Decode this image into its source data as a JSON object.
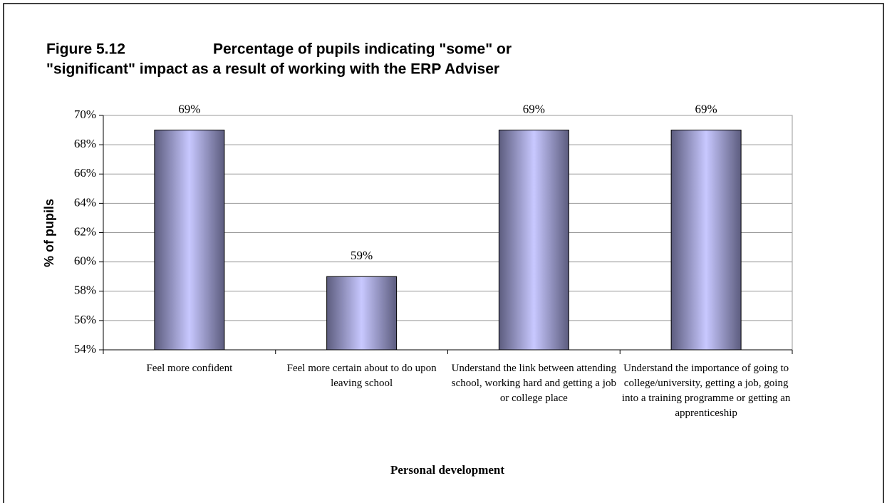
{
  "chart_data": {
    "type": "bar",
    "figure_label": "Figure 5.12",
    "title": [
      "Percentage of pupils indicating \"some\" or",
      "\"significant\" impact as a result of working with the ERP Adviser"
    ],
    "y_label": "% of pupils",
    "x_label": "Personal development",
    "categories": [
      "Feel more confident",
      "Feel more certain about to do upon leaving school",
      "Understand the link between attending school, working hard and getting a job or college place",
      "Understand the importance of going to college/university, getting a job, going into a training programme or getting an apprenticeship"
    ],
    "values": [
      69,
      59,
      69,
      69
    ],
    "value_labels": [
      "69%",
      "59%",
      "69%",
      "69%"
    ],
    "ylim": [
      54,
      70
    ],
    "yticks": [
      {
        "value": 54,
        "label": "54%"
      },
      {
        "value": 56,
        "label": "56%"
      },
      {
        "value": 58,
        "label": "58%"
      },
      {
        "value": 60,
        "label": "60%"
      },
      {
        "value": 62,
        "label": "62%"
      },
      {
        "value": 64,
        "label": "64%"
      },
      {
        "value": 66,
        "label": "66%"
      },
      {
        "value": 68,
        "label": "68%"
      },
      {
        "value": 70,
        "label": "70%"
      }
    ],
    "grid": true,
    "color": "#5c5c7e"
  }
}
